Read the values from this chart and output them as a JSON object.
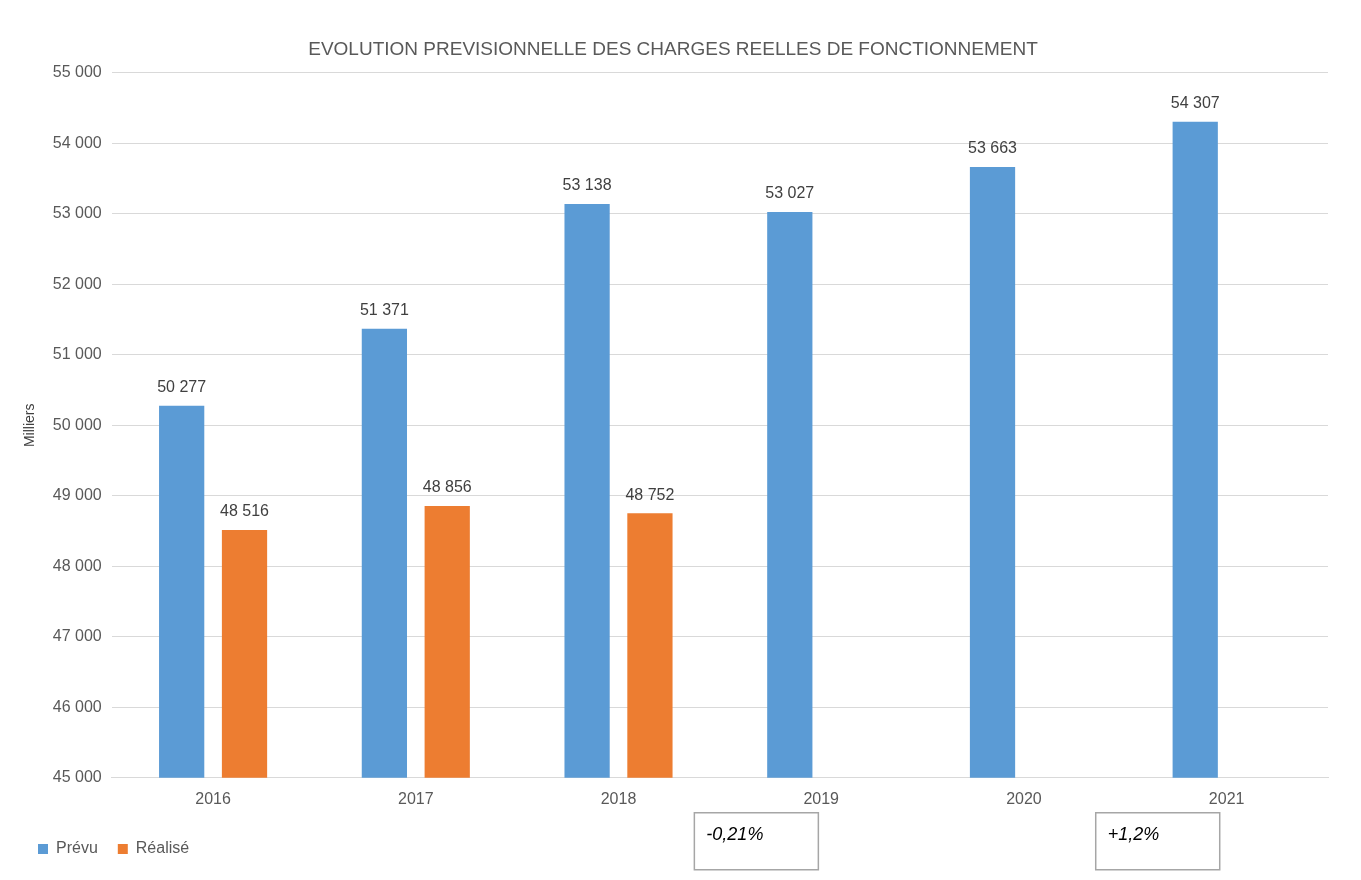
{
  "chart_data": {
    "type": "bar",
    "title": "EVOLUTION PREVISIONNELLE DES CHARGES REELLES DE FONCTIONNEMENT",
    "ylabel": "Milliers",
    "categories": [
      "2016",
      "2017",
      "2018",
      "2019",
      "2020",
      "2021"
    ],
    "series": [
      {
        "name": "Prévu",
        "color": "#5b9bd5",
        "values": [
          50277,
          51371,
          53138,
          53027,
          53663,
          54307
        ],
        "value_labels": [
          "50 277",
          "51 371",
          "53 138",
          "53 027",
          "53 663",
          "54 307"
        ]
      },
      {
        "name": "Réalisé",
        "color": "#ed7d31",
        "values": [
          48516,
          48856,
          48752,
          null,
          null,
          null
        ],
        "value_labels": [
          "48 516",
          "48 856",
          "48 752",
          null,
          null,
          null
        ]
      }
    ],
    "ylim": [
      45000,
      55000
    ],
    "yticks": [
      {
        "value": 45000,
        "label": "45 000"
      },
      {
        "value": 46000,
        "label": "46 000"
      },
      {
        "value": 47000,
        "label": "47 000"
      },
      {
        "value": 48000,
        "label": "48 000"
      },
      {
        "value": 49000,
        "label": "49 000"
      },
      {
        "value": 50000,
        "label": "50 000"
      },
      {
        "value": 51000,
        "label": "51 000"
      },
      {
        "value": 52000,
        "label": "52 000"
      },
      {
        "value": 53000,
        "label": "53 000"
      },
      {
        "value": 54000,
        "label": "54 000"
      },
      {
        "value": 55000,
        "label": "55 000"
      }
    ],
    "grid": "y",
    "legend": "bottom",
    "annotations": [
      "-0,21%",
      "+1,2%"
    ]
  }
}
